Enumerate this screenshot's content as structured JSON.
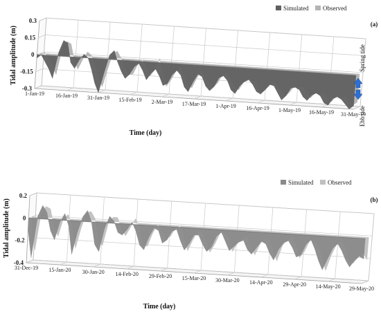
{
  "chart_data": [
    {
      "panel": "(a)",
      "type": "area",
      "view": "3d-perspective",
      "ylabel": "Tidal amplitude (m)",
      "xlabel": "Time (day)",
      "ylim": [
        -0.3,
        0.3
      ],
      "yticks": [
        "0.3",
        "0.15",
        "0",
        "-0.15",
        "-0.3"
      ],
      "xticks": [
        "1-Jan-19",
        "16-Jan-19",
        "31-Jan-19",
        "15-Feb-19",
        "2-Mar-19",
        "17-Mar-19",
        "1-Apr-19",
        "16-Apr-19",
        "1-May-19",
        "16-May-19",
        "31-May-19"
      ],
      "legend": [
        "Simulated",
        "Observed"
      ],
      "legend_position": "top-right",
      "grid": true,
      "annotations": {
        "spring": "Spring tide",
        "ebb": "Ebb tide"
      },
      "x": [
        0,
        2,
        4,
        6,
        8,
        10,
        12,
        14,
        16,
        18,
        20,
        22,
        24,
        26,
        28,
        30,
        32,
        34,
        36,
        38,
        40,
        42,
        44,
        46,
        48,
        50,
        52,
        54,
        56,
        58,
        60,
        62,
        64,
        66,
        68,
        70,
        72,
        74,
        76,
        78,
        80,
        82,
        84,
        86,
        88,
        90,
        92,
        94,
        96,
        98,
        100,
        102,
        104,
        106,
        108,
        110,
        112,
        114,
        116,
        118,
        120,
        122,
        124,
        126,
        128,
        130,
        132,
        134,
        136,
        138,
        140,
        142,
        144,
        146,
        148,
        150
      ],
      "series": [
        {
          "name": "Simulated",
          "values": [
            -0.03,
            0.0,
            -0.06,
            -0.12,
            -0.2,
            0.03,
            0.14,
            0.12,
            -0.05,
            -0.1,
            -0.02,
            0.03,
            0.0,
            -0.1,
            -0.22,
            -0.3,
            -0.12,
            0.04,
            0.08,
            -0.02,
            -0.1,
            -0.16,
            -0.12,
            -0.05,
            -0.02,
            -0.08,
            -0.16,
            -0.1,
            -0.06,
            -0.12,
            -0.2,
            -0.18,
            -0.1,
            -0.06,
            -0.1,
            -0.2,
            -0.24,
            -0.15,
            -0.08,
            -0.1,
            -0.18,
            -0.22,
            -0.18,
            -0.1,
            -0.08,
            -0.12,
            -0.2,
            -0.23,
            -0.16,
            -0.12,
            -0.1,
            -0.14,
            -0.2,
            -0.22,
            -0.18,
            -0.13,
            -0.14,
            -0.2,
            -0.26,
            -0.22,
            -0.15,
            -0.14,
            -0.16,
            -0.22,
            -0.25,
            -0.2,
            -0.18,
            -0.2,
            -0.26,
            -0.28,
            -0.22,
            -0.2,
            -0.22,
            -0.26,
            -0.3,
            -0.27
          ]
        },
        {
          "name": "Observed",
          "values": [
            -0.02,
            0.01,
            -0.05,
            -0.1,
            -0.18,
            0.05,
            0.12,
            0.1,
            -0.04,
            -0.12,
            -0.03,
            0.04,
            0.01,
            -0.08,
            -0.18,
            -0.26,
            -0.1,
            0.05,
            0.06,
            0.0,
            -0.08,
            -0.14,
            -0.13,
            -0.04,
            0.0,
            -0.06,
            -0.14,
            -0.08,
            0.02,
            -0.1,
            -0.22,
            -0.16,
            -0.08,
            -0.04,
            -0.12,
            -0.18,
            -0.22,
            -0.13,
            -0.06,
            -0.12,
            -0.16,
            -0.2,
            -0.16,
            -0.08,
            -0.06,
            -0.13,
            -0.18,
            -0.21,
            -0.14,
            -0.1,
            -0.12,
            -0.12,
            -0.22,
            -0.2,
            -0.16,
            -0.12,
            -0.16,
            -0.18,
            -0.24,
            -0.2,
            -0.14,
            -0.16,
            -0.14,
            -0.2,
            -0.24,
            -0.19,
            -0.2,
            -0.18,
            -0.24,
            -0.26,
            -0.2,
            -0.22,
            -0.2,
            -0.24,
            -0.28,
            -0.25
          ]
        }
      ]
    },
    {
      "panel": "(b)",
      "type": "area",
      "view": "3d-perspective",
      "ylabel": "Tidal amplitude (m)",
      "xlabel": "Time (day)",
      "ylim": [
        -0.4,
        0.2
      ],
      "yticks": [
        "0.2",
        "0",
        "-0.2",
        "-0.4"
      ],
      "xticks": [
        "31-Dec-19",
        "15-Jan-20",
        "30-Jan-20",
        "14-Feb-20",
        "29-Feb-20",
        "15-Mar-20",
        "30-Mar-20",
        "14-Apr-20",
        "29-Apr-20",
        "14-May-20",
        "29-May-20"
      ],
      "legend": [
        "Simulated",
        "Observed"
      ],
      "legend_position": "top-right",
      "grid": true,
      "x": [
        0,
        2,
        4,
        6,
        8,
        10,
        12,
        14,
        16,
        18,
        20,
        22,
        24,
        26,
        28,
        30,
        32,
        34,
        36,
        38,
        40,
        42,
        44,
        46,
        48,
        50,
        52,
        54,
        56,
        58,
        60,
        62,
        64,
        66,
        68,
        70,
        72,
        74,
        76,
        78,
        80,
        82,
        84,
        86,
        88,
        90,
        92,
        94,
        96,
        98,
        100,
        102,
        104,
        106,
        108,
        110,
        112,
        114,
        116,
        118,
        120,
        122,
        124,
        126,
        128,
        130,
        132,
        134,
        136,
        138,
        140,
        142,
        144,
        146,
        148,
        150
      ],
      "series": [
        {
          "name": "Simulated",
          "values": [
            -0.1,
            -0.35,
            0.02,
            0.12,
            0.06,
            -0.1,
            -0.18,
            -0.02,
            0.06,
            -0.05,
            -0.3,
            -0.1,
            0.04,
            0.1,
            0.0,
            -0.2,
            -0.26,
            -0.05,
            0.06,
            0.02,
            -0.08,
            -0.1,
            -0.05,
            0.02,
            -0.06,
            -0.18,
            -0.22,
            -0.1,
            -0.02,
            -0.04,
            -0.15,
            -0.12,
            -0.04,
            -0.02,
            -0.12,
            -0.2,
            -0.14,
            -0.06,
            -0.06,
            -0.14,
            -0.2,
            -0.16,
            -0.06,
            -0.02,
            -0.1,
            -0.18,
            -0.14,
            -0.1,
            -0.08,
            -0.16,
            -0.2,
            -0.14,
            -0.08,
            -0.1,
            -0.18,
            -0.24,
            -0.14,
            -0.08,
            -0.06,
            -0.12,
            -0.2,
            -0.18,
            -0.08,
            -0.04,
            -0.12,
            -0.22,
            -0.3,
            -0.2,
            -0.1,
            -0.06,
            -0.12,
            -0.2,
            -0.26,
            -0.2,
            -0.16,
            -0.18
          ]
        },
        {
          "name": "Observed",
          "values": [
            -0.08,
            -0.3,
            0.04,
            0.1,
            0.08,
            -0.08,
            -0.16,
            0.0,
            0.04,
            -0.06,
            -0.26,
            -0.08,
            0.06,
            0.08,
            0.02,
            -0.18,
            -0.22,
            -0.02,
            0.04,
            0.04,
            -0.06,
            -0.12,
            -0.04,
            0.04,
            -0.04,
            -0.2,
            -0.2,
            -0.08,
            0.0,
            -0.06,
            -0.12,
            -0.1,
            -0.02,
            0.0,
            -0.1,
            -0.22,
            -0.12,
            -0.04,
            -0.04,
            -0.12,
            -0.22,
            -0.14,
            -0.04,
            -0.04,
            -0.08,
            -0.2,
            -0.12,
            -0.08,
            -0.06,
            -0.14,
            -0.22,
            -0.12,
            -0.06,
            -0.08,
            -0.16,
            -0.26,
            -0.12,
            -0.06,
            -0.04,
            -0.1,
            -0.22,
            -0.16,
            -0.06,
            -0.06,
            -0.1,
            -0.2,
            -0.32,
            -0.18,
            -0.08,
            -0.04,
            -0.1,
            -0.22,
            -0.24,
            -0.18,
            -0.14,
            -0.2
          ]
        }
      ]
    }
  ]
}
